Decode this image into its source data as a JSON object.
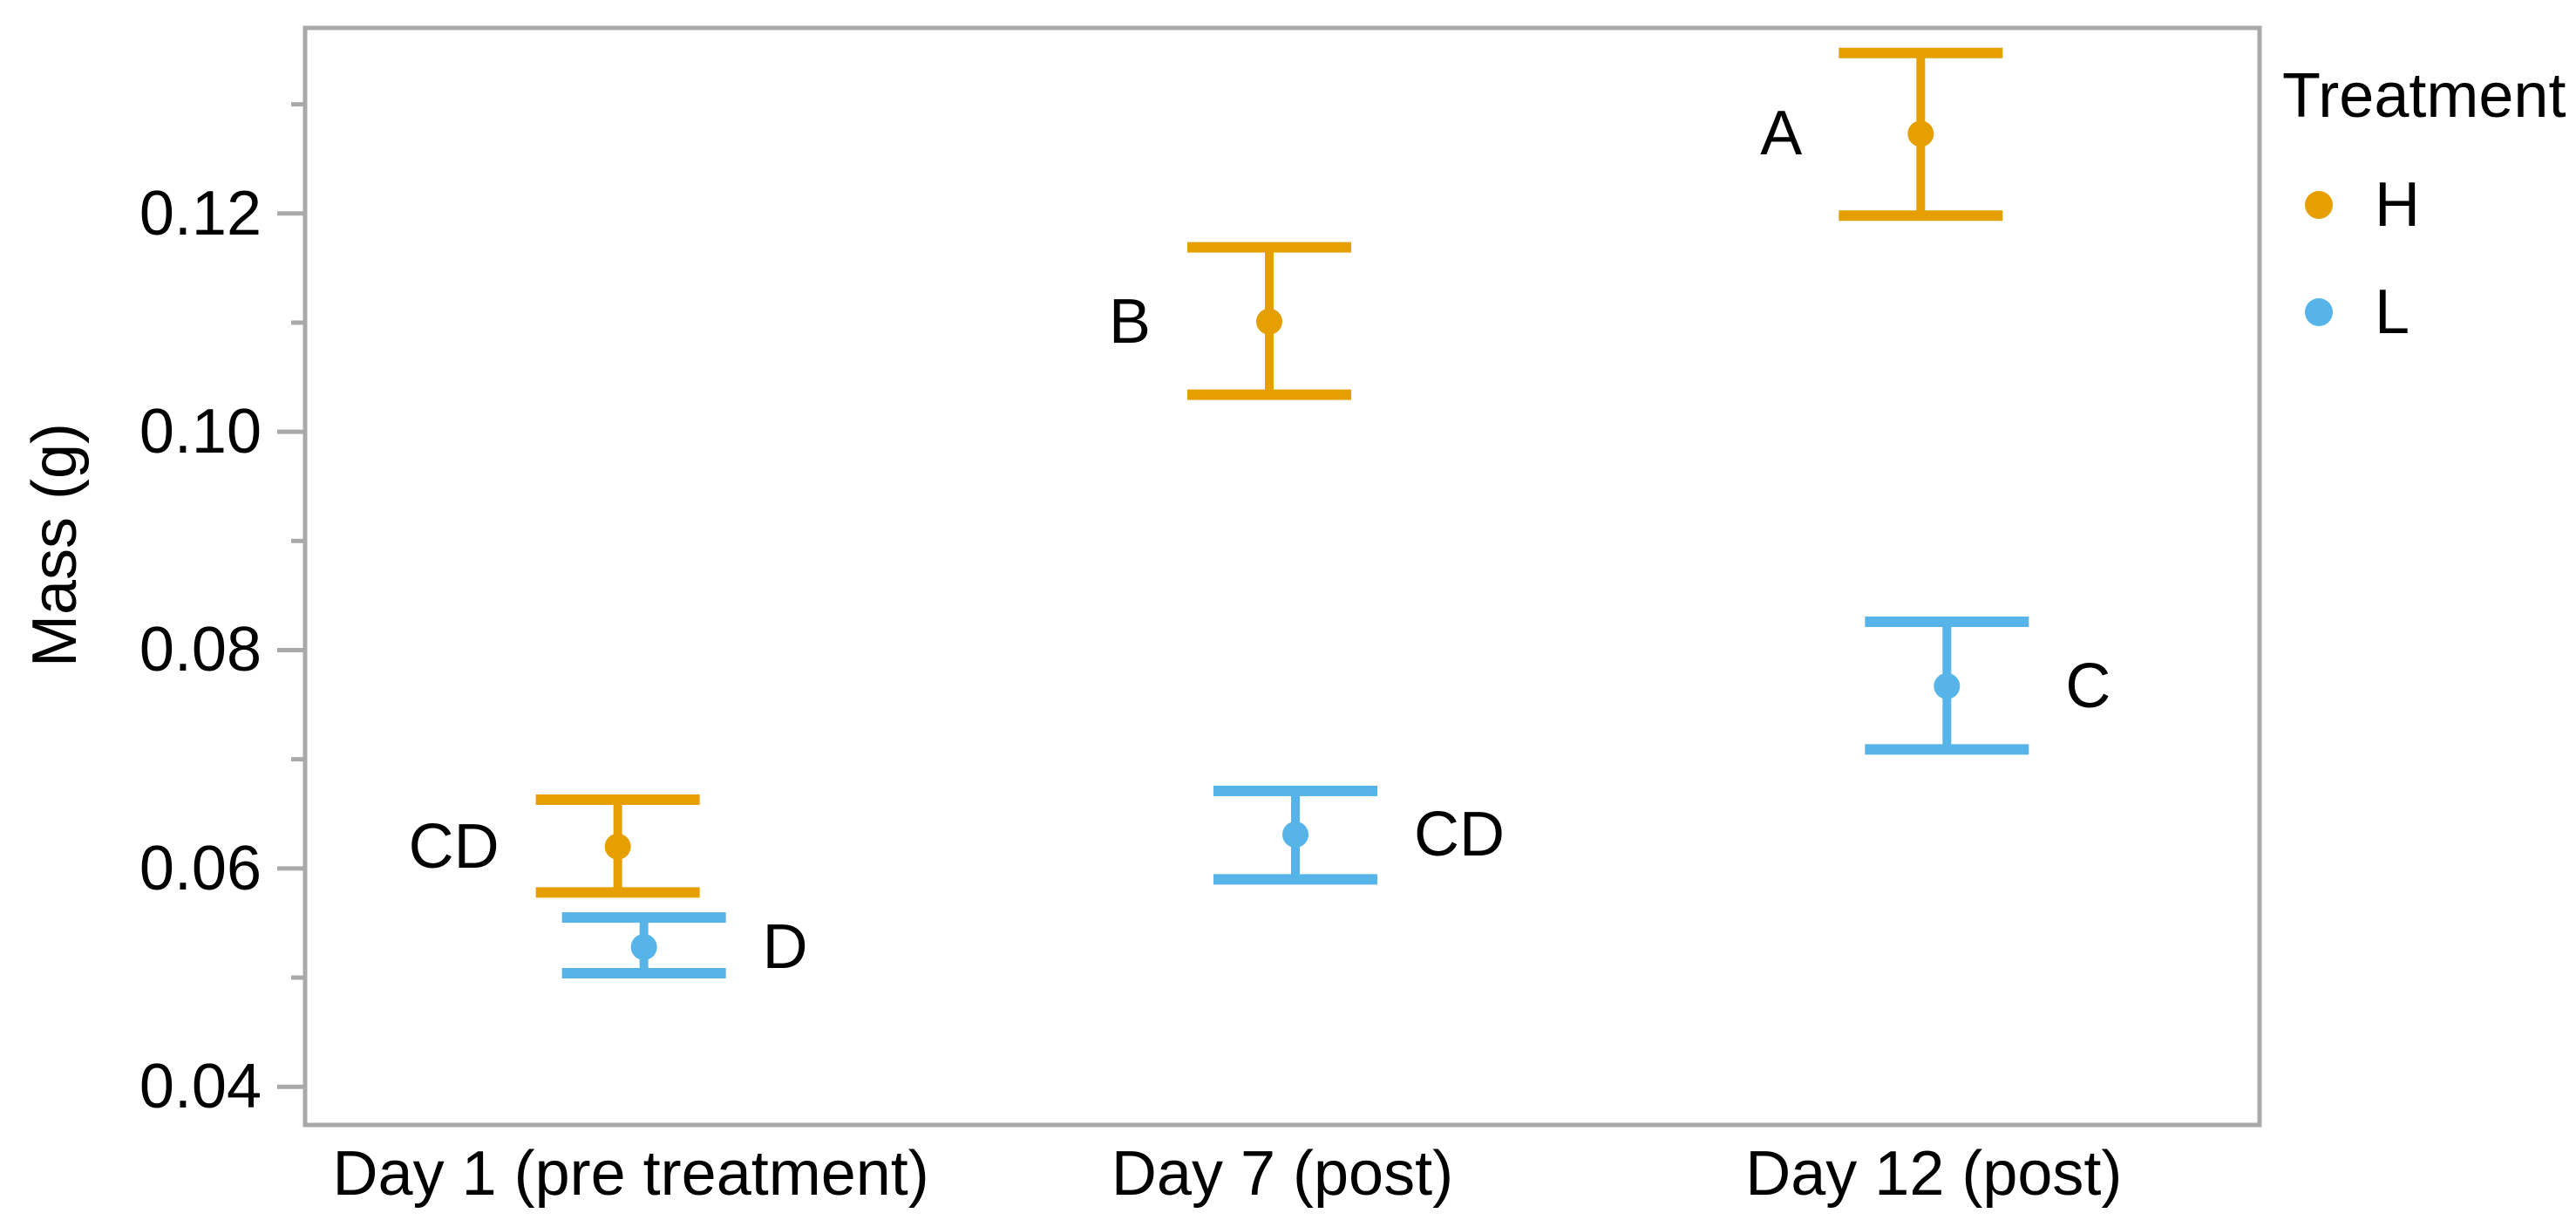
{
  "chart_data": {
    "type": "scatter",
    "subtype": "mean-errorbar",
    "title": "",
    "xlabel": "",
    "ylabel": "Mass (g)",
    "categories": [
      "Day 1 (pre treatment)",
      "Day 7 (post)",
      "Day 12 (post)"
    ],
    "ylim": [
      0.0365,
      0.137
    ],
    "yticks": [
      {
        "value": 0.04,
        "label": "0.04"
      },
      {
        "value": 0.06,
        "label": "0.06"
      },
      {
        "value": 0.08,
        "label": "0.08"
      },
      {
        "value": 0.1,
        "label": "0.10"
      },
      {
        "value": 0.12,
        "label": "0.12"
      }
    ],
    "yticks_minor": [
      0.05,
      0.07,
      0.09,
      0.11,
      0.13
    ],
    "grid": "off",
    "frame_color": "#a9a9a9",
    "legend": {
      "title": "Treatment",
      "position": "right"
    },
    "series": [
      {
        "name": "H",
        "color": "#E69F00",
        "points": [
          {
            "category_index": 0,
            "mean": 0.062,
            "lower": 0.0578,
            "upper": 0.0663,
            "sig_label": "CD",
            "label_side": "left"
          },
          {
            "category_index": 1,
            "mean": 0.1101,
            "lower": 0.1034,
            "upper": 0.1169,
            "sig_label": "B",
            "label_side": "left"
          },
          {
            "category_index": 2,
            "mean": 0.1273,
            "lower": 0.1198,
            "upper": 0.1347,
            "sig_label": "A",
            "label_side": "left"
          }
        ]
      },
      {
        "name": "L",
        "color": "#56B4E9",
        "points": [
          {
            "category_index": 0,
            "mean": 0.0528,
            "lower": 0.0504,
            "upper": 0.0555,
            "sig_label": "D",
            "label_side": "right"
          },
          {
            "category_index": 1,
            "mean": 0.0631,
            "lower": 0.059,
            "upper": 0.0671,
            "sig_label": "CD",
            "label_side": "right"
          },
          {
            "category_index": 2,
            "mean": 0.0767,
            "lower": 0.0709,
            "upper": 0.0826,
            "sig_label": "C",
            "label_side": "right"
          }
        ]
      }
    ]
  }
}
